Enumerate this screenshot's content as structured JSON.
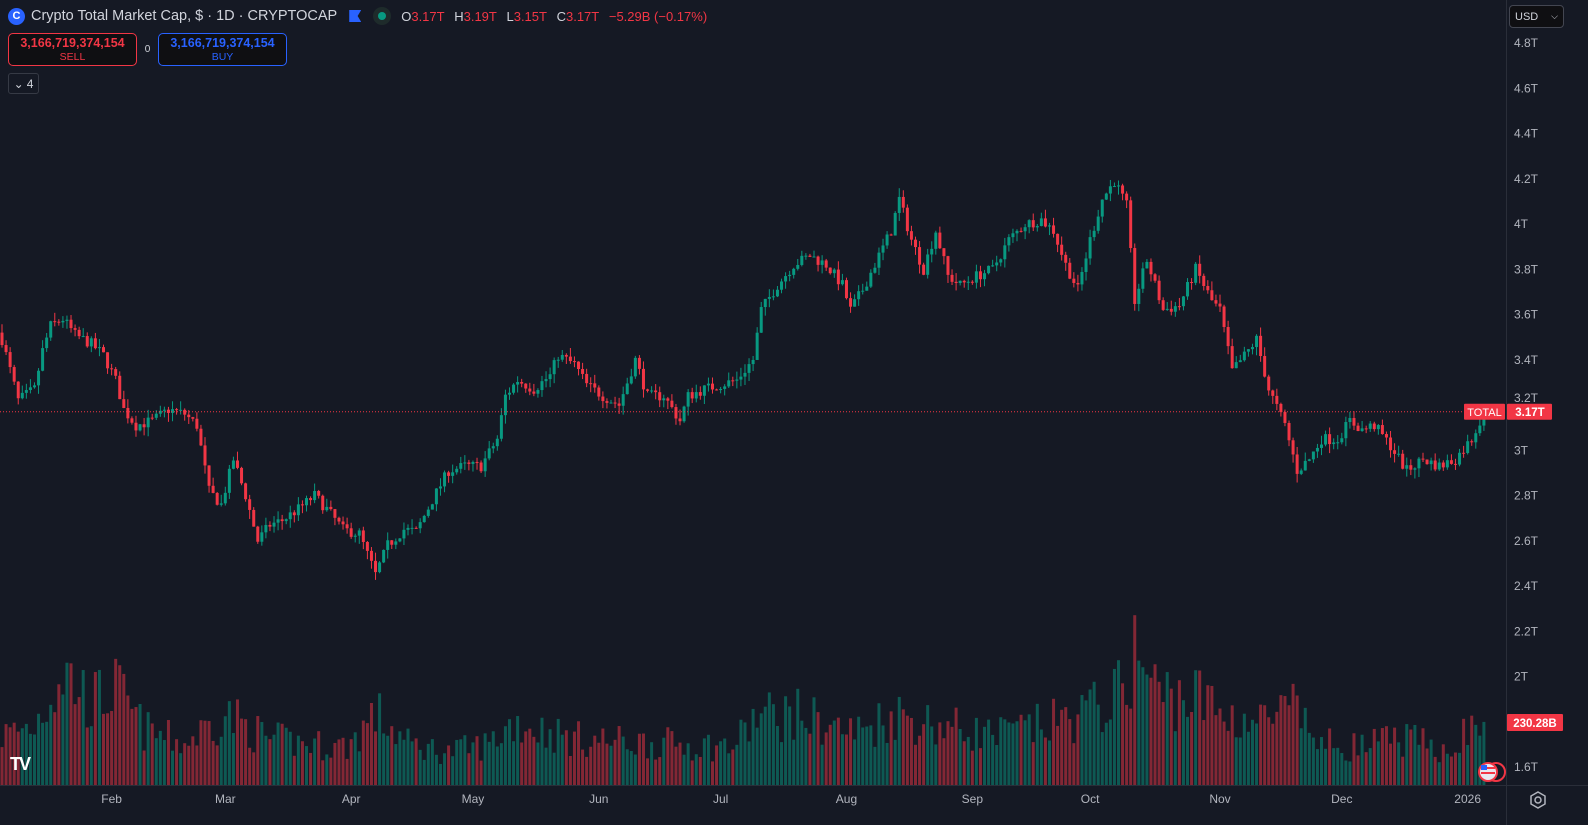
{
  "header": {
    "title": "Crypto Total Market Cap, $ · 1D · CRYPTOCAP",
    "logo_letter": "C",
    "open_label": "O",
    "open": "3.17T",
    "high_label": "H",
    "high": "3.19T",
    "low_label": "L",
    "low": "3.15T",
    "close_label": "C",
    "close": "3.17T",
    "change": "−5.29B (−0.17%)"
  },
  "trade": {
    "sell_price": "3,166,719,374,154",
    "sell_label": "SELL",
    "spread": "0",
    "buy_price": "3,166,719,374,154",
    "buy_label": "BUY"
  },
  "indicators_toggle": {
    "count": "4"
  },
  "currency": "USD",
  "colors": {
    "up": "#089981",
    "down": "#f23645",
    "background": "#151924",
    "buy": "#2962ff"
  },
  "chart_data": {
    "type": "candlestick",
    "symbol": "TOTAL",
    "interval": "1D",
    "ylim": [
      1.5,
      4.95
    ],
    "y_unit": "T",
    "y_ticks": [
      "4.8T",
      "4.6T",
      "4.4T",
      "4.2T",
      "4T",
      "3.8T",
      "3.6T",
      "3.4T",
      "3.2T",
      "3T",
      "2.8T",
      "2.6T",
      "2.4T",
      "2.2T",
      "2T",
      "1.6T"
    ],
    "y_tick_values": [
      4.8,
      4.6,
      4.4,
      4.2,
      4.0,
      3.8,
      3.6,
      3.4,
      3.2,
      3.0,
      2.8,
      2.6,
      2.4,
      2.2,
      2.0,
      1.6
    ],
    "x_range_days": [
      0,
      372
    ],
    "x_ticks": [
      {
        "label": "Feb",
        "day": 27
      },
      {
        "label": "Mar",
        "day": 55
      },
      {
        "label": "Apr",
        "day": 86
      },
      {
        "label": "May",
        "day": 116
      },
      {
        "label": "Jun",
        "day": 147
      },
      {
        "label": "Jul",
        "day": 177
      },
      {
        "label": "Aug",
        "day": 208
      },
      {
        "label": "Sep",
        "day": 239
      },
      {
        "label": "Oct",
        "day": 268
      },
      {
        "label": "Nov",
        "day": 300
      },
      {
        "label": "Dec",
        "day": 330
      },
      {
        "label": "2026",
        "day": 361
      }
    ],
    "close_keypoints": [
      [
        0,
        3.49
      ],
      [
        4,
        3.22
      ],
      [
        8,
        3.27
      ],
      [
        10,
        3.44
      ],
      [
        12,
        3.55
      ],
      [
        15,
        3.58
      ],
      [
        18,
        3.51
      ],
      [
        22,
        3.47
      ],
      [
        25,
        3.42
      ],
      [
        28,
        3.31
      ],
      [
        30,
        3.18
      ],
      [
        33,
        3.11
      ],
      [
        37,
        3.13
      ],
      [
        41,
        3.18
      ],
      [
        45,
        3.16
      ],
      [
        48,
        3.11
      ],
      [
        51,
        2.82
      ],
      [
        54,
        2.76
      ],
      [
        57,
        2.96
      ],
      [
        60,
        2.8
      ],
      [
        63,
        2.6
      ],
      [
        66,
        2.67
      ],
      [
        69,
        2.69
      ],
      [
        73,
        2.74
      ],
      [
        77,
        2.8
      ],
      [
        80,
        2.74
      ],
      [
        84,
        2.65
      ],
      [
        88,
        2.63
      ],
      [
        92,
        2.45
      ],
      [
        95,
        2.58
      ],
      [
        99,
        2.65
      ],
      [
        102,
        2.64
      ],
      [
        106,
        2.78
      ],
      [
        110,
        2.91
      ],
      [
        114,
        2.93
      ],
      [
        118,
        2.93
      ],
      [
        122,
        3.05
      ],
      [
        124,
        3.24
      ],
      [
        127,
        3.31
      ],
      [
        131,
        3.27
      ],
      [
        135,
        3.33
      ],
      [
        137,
        3.42
      ],
      [
        141,
        3.38
      ],
      [
        144,
        3.29
      ],
      [
        148,
        3.24
      ],
      [
        152,
        3.2
      ],
      [
        156,
        3.4
      ],
      [
        159,
        3.24
      ],
      [
        163,
        3.24
      ],
      [
        167,
        3.13
      ],
      [
        169,
        3.24
      ],
      [
        173,
        3.27
      ],
      [
        177,
        3.29
      ],
      [
        181,
        3.31
      ],
      [
        185,
        3.4
      ],
      [
        187,
        3.62
      ],
      [
        191,
        3.73
      ],
      [
        195,
        3.82
      ],
      [
        199,
        3.86
      ],
      [
        203,
        3.82
      ],
      [
        207,
        3.73
      ],
      [
        209,
        3.62
      ],
      [
        212,
        3.71
      ],
      [
        216,
        3.86
      ],
      [
        219,
        3.97
      ],
      [
        221,
        4.11
      ],
      [
        224,
        3.93
      ],
      [
        227,
        3.8
      ],
      [
        230,
        3.97
      ],
      [
        233,
        3.77
      ],
      [
        236,
        3.73
      ],
      [
        240,
        3.77
      ],
      [
        244,
        3.8
      ],
      [
        248,
        3.93
      ],
      [
        252,
        4.0
      ],
      [
        256,
        4.02
      ],
      [
        259,
        3.97
      ],
      [
        262,
        3.82
      ],
      [
        265,
        3.71
      ],
      [
        268,
        3.93
      ],
      [
        271,
        4.11
      ],
      [
        274,
        4.19
      ],
      [
        277,
        4.08
      ],
      [
        279,
        3.66
      ],
      [
        282,
        3.84
      ],
      [
        286,
        3.62
      ],
      [
        290,
        3.64
      ],
      [
        294,
        3.8
      ],
      [
        298,
        3.66
      ],
      [
        300,
        3.62
      ],
      [
        303,
        3.35
      ],
      [
        307,
        3.44
      ],
      [
        309,
        3.49
      ],
      [
        312,
        3.27
      ],
      [
        316,
        3.11
      ],
      [
        319,
        2.91
      ],
      [
        322,
        2.96
      ],
      [
        325,
        3.05
      ],
      [
        329,
        3.05
      ],
      [
        332,
        3.13
      ],
      [
        335,
        3.09
      ],
      [
        338,
        3.11
      ],
      [
        342,
        3.02
      ],
      [
        346,
        2.91
      ],
      [
        350,
        2.96
      ],
      [
        354,
        2.93
      ],
      [
        358,
        2.96
      ],
      [
        362,
        3.05
      ],
      [
        365,
        3.17
      ]
    ],
    "volume_unit": "B",
    "volume_keypoints": [
      [
        0,
        180
      ],
      [
        8,
        220
      ],
      [
        15,
        420
      ],
      [
        22,
        300
      ],
      [
        28,
        350
      ],
      [
        35,
        200
      ],
      [
        45,
        150
      ],
      [
        55,
        260
      ],
      [
        65,
        170
      ],
      [
        75,
        150
      ],
      [
        85,
        140
      ],
      [
        92,
        260
      ],
      [
        100,
        150
      ],
      [
        110,
        120
      ],
      [
        120,
        150
      ],
      [
        126,
        230
      ],
      [
        140,
        170
      ],
      [
        150,
        160
      ],
      [
        165,
        150
      ],
      [
        180,
        140
      ],
      [
        186,
        250
      ],
      [
        195,
        260
      ],
      [
        210,
        190
      ],
      [
        220,
        260
      ],
      [
        230,
        220
      ],
      [
        245,
        180
      ],
      [
        260,
        230
      ],
      [
        268,
        270
      ],
      [
        275,
        330
      ],
      [
        279,
        480
      ],
      [
        285,
        330
      ],
      [
        295,
        320
      ],
      [
        300,
        260
      ],
      [
        310,
        230
      ],
      [
        318,
        270
      ],
      [
        325,
        150
      ],
      [
        335,
        140
      ],
      [
        345,
        170
      ],
      [
        355,
        130
      ],
      [
        365,
        230
      ]
    ],
    "last_price": 3.17,
    "last_price_label": "3.17T",
    "last_volume_label": "230.28B"
  }
}
